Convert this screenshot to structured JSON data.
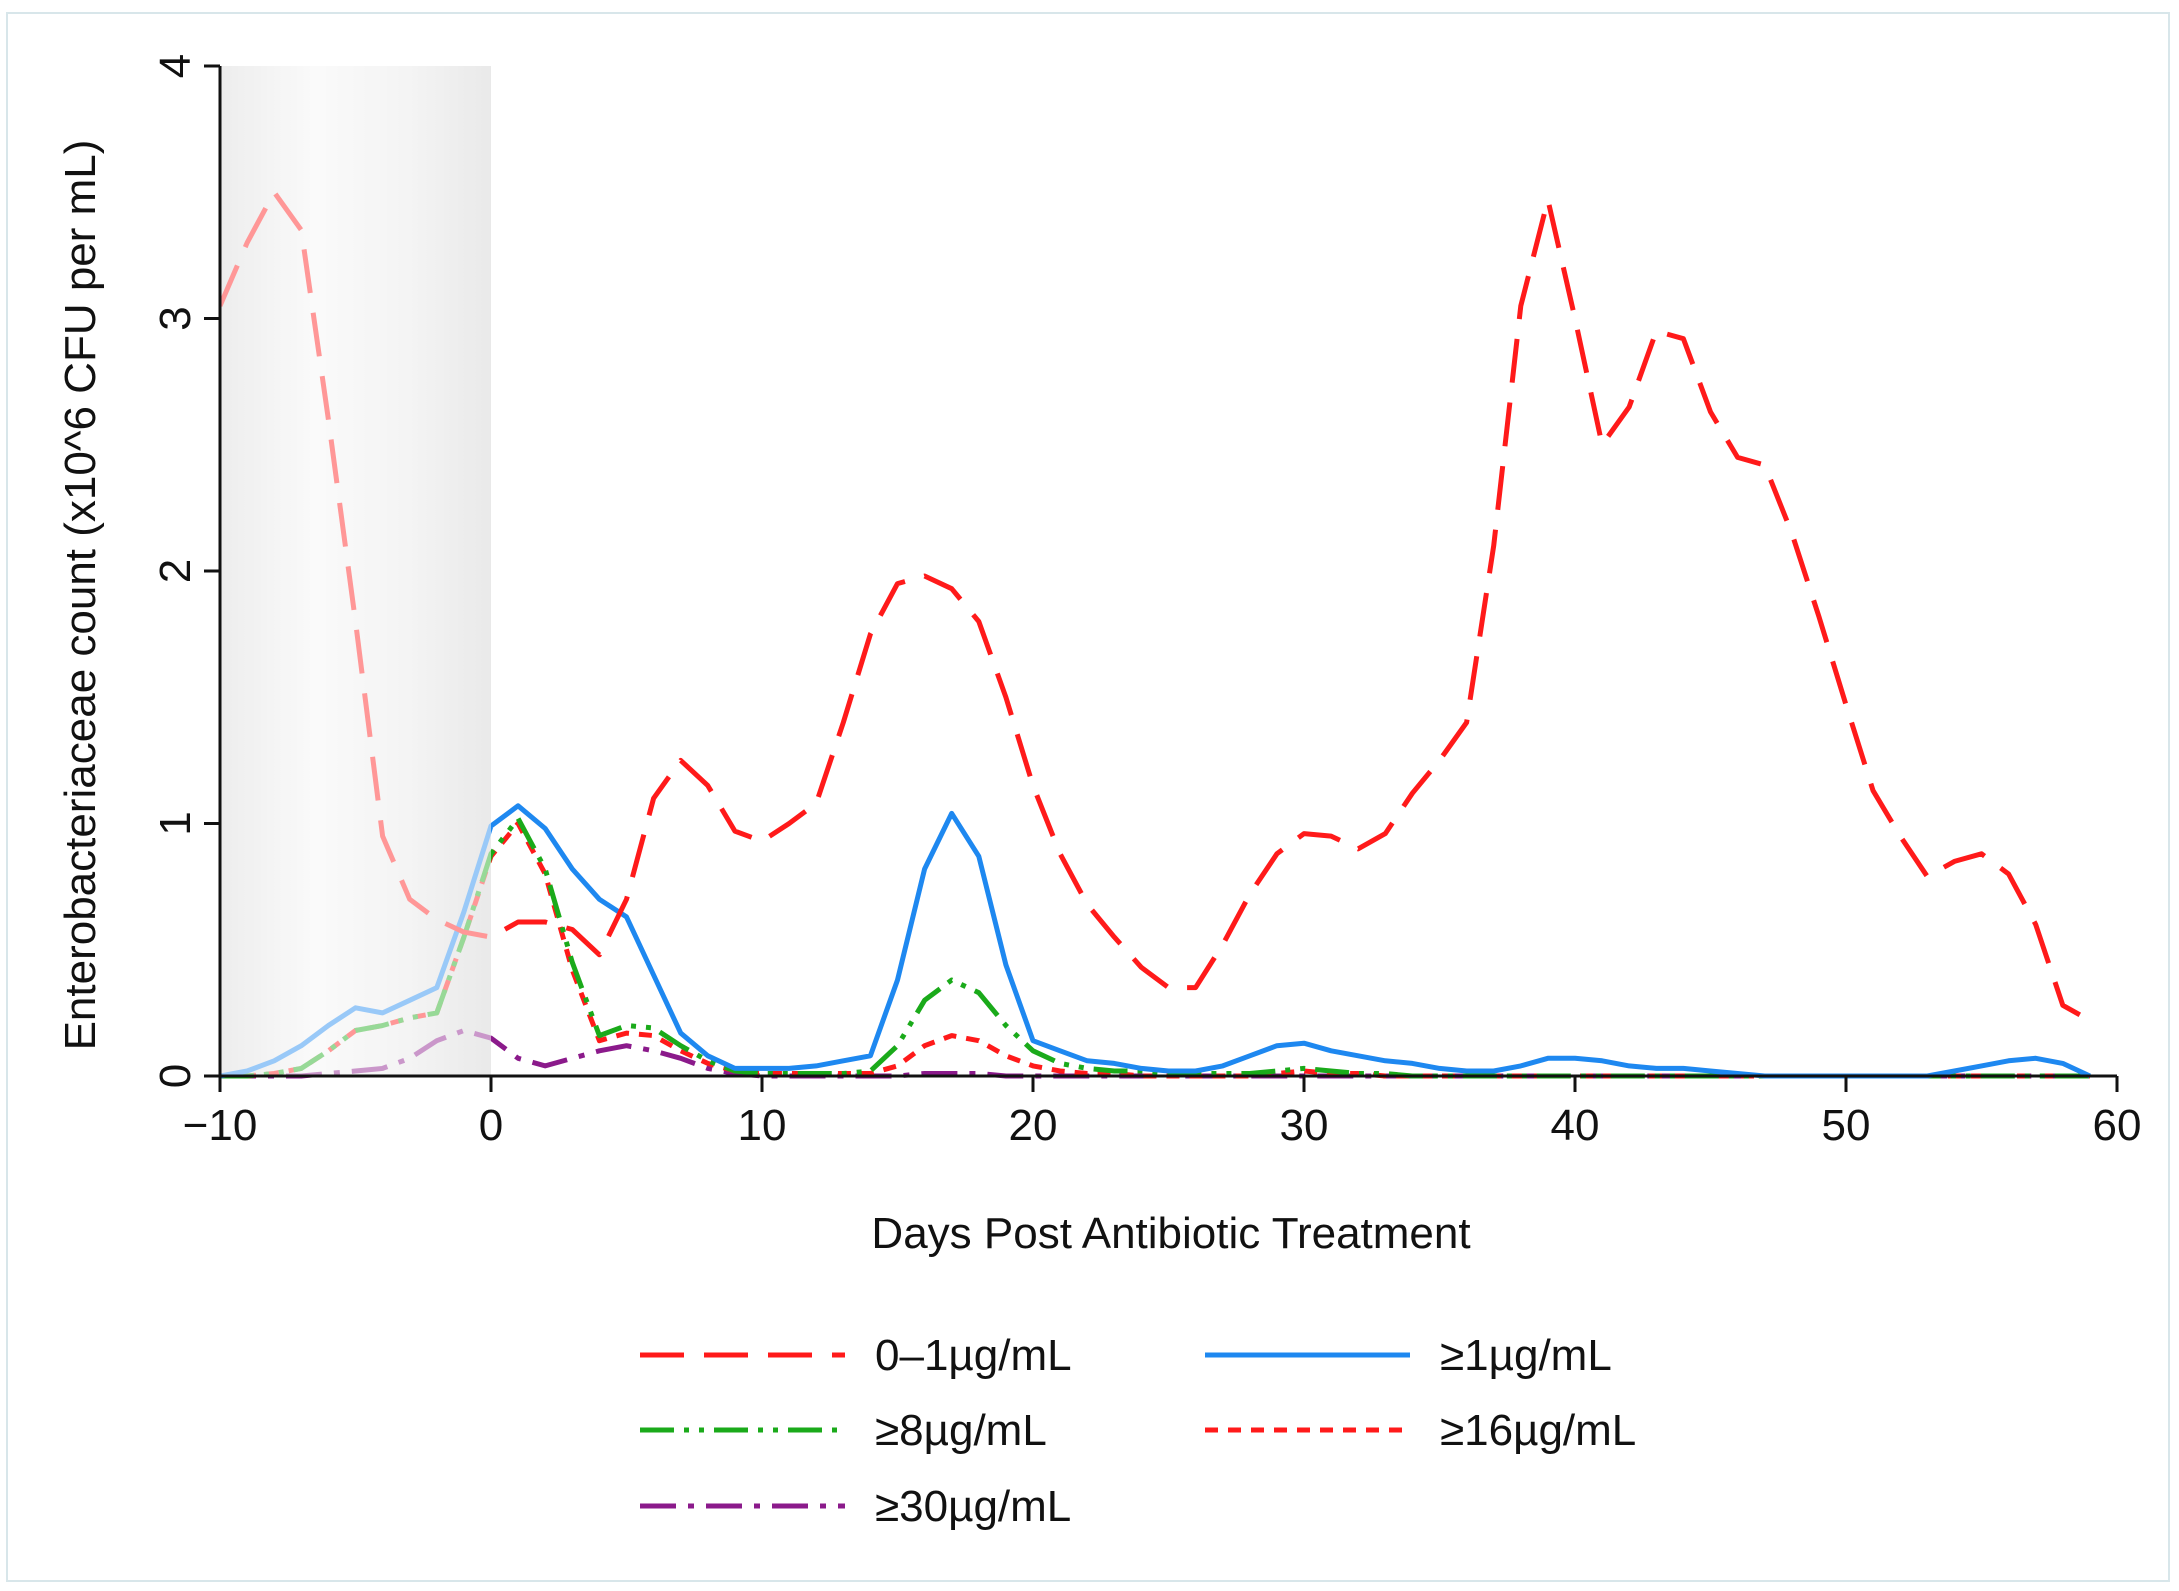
{
  "chart_data": {
    "type": "line",
    "title": "",
    "xlabel": "Days Post Antibiotic Treatment",
    "ylabel": "Enterobacteriaceae count (x10^6 CFU per mL)",
    "xlim": [
      -10,
      60
    ],
    "ylim": [
      0,
      4
    ],
    "xticks": [
      -10,
      0,
      10,
      20,
      30,
      40,
      50,
      60
    ],
    "yticks": [
      0,
      1,
      2,
      3,
      4
    ],
    "xtick_labels": [
      "−10",
      "0",
      "10",
      "20",
      "30",
      "40",
      "50",
      "60"
    ],
    "ytick_labels": [
      "0",
      "1",
      "2",
      "3",
      "4"
    ],
    "shaded_region": {
      "x_from": -10,
      "x_to": 0,
      "meaning": "pre-treatment period (faded)"
    },
    "legend_position": "bottom",
    "series": [
      {
        "name": "0–1µg/mL",
        "color": "#ff1a1a",
        "dash": "long-dash",
        "x": [
          -10,
          -9,
          -8,
          -7,
          -6,
          -5,
          -4,
          -3,
          -2,
          -1,
          0,
          1,
          2,
          3,
          4,
          5,
          6,
          7,
          8,
          9,
          10,
          11,
          12,
          13,
          14,
          15,
          16,
          17,
          18,
          19,
          20,
          21,
          22,
          23,
          24,
          25,
          26,
          27,
          28,
          29,
          30,
          31,
          32,
          33,
          34,
          35,
          36,
          37,
          38,
          39,
          40,
          41,
          42,
          43,
          44,
          45,
          46,
          47,
          48,
          49,
          50,
          51,
          52,
          53,
          54,
          55,
          56,
          57,
          58,
          59
        ],
        "y": [
          3.05,
          3.3,
          3.5,
          3.35,
          2.6,
          1.8,
          0.95,
          0.7,
          0.62,
          0.57,
          0.55,
          0.61,
          0.61,
          0.58,
          0.48,
          0.7,
          1.1,
          1.25,
          1.15,
          0.97,
          0.93,
          1.0,
          1.08,
          1.4,
          1.75,
          1.95,
          1.98,
          1.93,
          1.8,
          1.5,
          1.15,
          0.88,
          0.68,
          0.55,
          0.43,
          0.35,
          0.35,
          0.52,
          0.72,
          0.88,
          0.96,
          0.95,
          0.9,
          0.96,
          1.12,
          1.25,
          1.4,
          2.1,
          3.05,
          3.47,
          3.0,
          2.5,
          2.65,
          2.95,
          2.92,
          2.63,
          2.45,
          2.42,
          2.15,
          1.82,
          1.47,
          1.13,
          0.95,
          0.79,
          0.85,
          0.88,
          0.8,
          0.6,
          0.28,
          0.22
        ]
      },
      {
        "name": "≥1µg/mL",
        "color": "#1e88f0",
        "dash": "solid",
        "x": [
          -10,
          -9,
          -8,
          -7,
          -6,
          -5,
          -4,
          -3,
          -2,
          -1,
          0,
          1,
          2,
          3,
          4,
          5,
          6,
          7,
          8,
          9,
          10,
          11,
          12,
          13,
          14,
          15,
          16,
          17,
          18,
          19,
          20,
          21,
          22,
          23,
          24,
          25,
          26,
          27,
          28,
          29,
          30,
          31,
          32,
          33,
          34,
          35,
          36,
          37,
          38,
          39,
          40,
          41,
          42,
          43,
          44,
          45,
          46,
          47,
          48,
          49,
          50,
          51,
          52,
          53,
          54,
          55,
          56,
          57,
          58,
          59
        ],
        "y": [
          0.0,
          0.02,
          0.06,
          0.12,
          0.2,
          0.27,
          0.25,
          0.3,
          0.35,
          0.65,
          0.99,
          1.07,
          0.98,
          0.82,
          0.7,
          0.63,
          0.4,
          0.17,
          0.08,
          0.03,
          0.03,
          0.03,
          0.04,
          0.06,
          0.08,
          0.38,
          0.82,
          1.04,
          0.87,
          0.44,
          0.14,
          0.1,
          0.06,
          0.05,
          0.03,
          0.02,
          0.02,
          0.04,
          0.08,
          0.12,
          0.13,
          0.1,
          0.08,
          0.06,
          0.05,
          0.03,
          0.02,
          0.02,
          0.04,
          0.07,
          0.07,
          0.06,
          0.04,
          0.03,
          0.03,
          0.02,
          0.01,
          0.0,
          0.0,
          0.0,
          0.0,
          0.0,
          0.0,
          0.0,
          0.02,
          0.04,
          0.06,
          0.07,
          0.05,
          0.0
        ]
      },
      {
        "name": "≥8µg/mL",
        "color": "#1aaa1a",
        "dash": "long-dash-dot-dot",
        "x": [
          -10,
          -9,
          -8,
          -7,
          -6,
          -5,
          -4,
          -3,
          -2,
          -1,
          0,
          1,
          2,
          3,
          4,
          5,
          6,
          7,
          8,
          9,
          10,
          11,
          12,
          13,
          14,
          15,
          16,
          17,
          18,
          19,
          20,
          21,
          22,
          23,
          24,
          25,
          26,
          27,
          28,
          29,
          30,
          31,
          32,
          33,
          34,
          35,
          36,
          37,
          38,
          39,
          40,
          41,
          42,
          43,
          44,
          45,
          46,
          47,
          48,
          49,
          50,
          51,
          52,
          53,
          54,
          55,
          56,
          57,
          58,
          59
        ],
        "y": [
          0.0,
          0.0,
          0.01,
          0.03,
          0.1,
          0.18,
          0.2,
          0.23,
          0.25,
          0.55,
          0.88,
          1.02,
          0.82,
          0.45,
          0.16,
          0.2,
          0.19,
          0.12,
          0.06,
          0.02,
          0.01,
          0.01,
          0.01,
          0.01,
          0.02,
          0.12,
          0.3,
          0.38,
          0.33,
          0.2,
          0.1,
          0.05,
          0.03,
          0.02,
          0.02,
          0.01,
          0.01,
          0.01,
          0.01,
          0.02,
          0.03,
          0.02,
          0.01,
          0.01,
          0.0,
          0.0,
          0.0,
          0.0,
          0.0,
          0.0,
          0.0,
          0.0,
          0.0,
          0.0,
          0.0,
          0.0,
          0.0,
          0.0,
          0.0,
          0.0,
          0.0,
          0.0,
          0.0,
          0.0,
          0.0,
          0.0,
          0.0,
          0.0,
          0.0,
          0.0
        ]
      },
      {
        "name": "≥16µg/mL",
        "color": "#ff1a1a",
        "dash": "short-dash",
        "x": [
          -10,
          -9,
          -8,
          -7,
          -6,
          -5,
          -4,
          -3,
          -2,
          -1,
          0,
          1,
          2,
          3,
          4,
          5,
          6,
          7,
          8,
          9,
          10,
          11,
          12,
          13,
          14,
          15,
          16,
          17,
          18,
          19,
          20,
          21,
          22,
          23,
          24,
          25,
          26,
          27,
          28,
          29,
          30,
          31,
          32,
          33,
          34,
          35,
          36,
          37,
          38,
          39,
          40,
          41,
          42,
          43,
          44,
          45,
          46,
          47,
          48,
          49,
          50,
          51,
          52,
          53,
          54,
          55,
          56,
          57,
          58,
          59
        ],
        "y": [
          0.0,
          0.0,
          0.01,
          0.03,
          0.1,
          0.18,
          0.2,
          0.23,
          0.25,
          0.55,
          0.87,
          1.0,
          0.8,
          0.42,
          0.14,
          0.17,
          0.16,
          0.1,
          0.05,
          0.02,
          0.01,
          0.01,
          0.01,
          0.01,
          0.01,
          0.04,
          0.12,
          0.16,
          0.14,
          0.08,
          0.04,
          0.02,
          0.01,
          0.01,
          0.0,
          0.0,
          0.0,
          0.0,
          0.0,
          0.01,
          0.02,
          0.01,
          0.01,
          0.0,
          0.0,
          0.0,
          0.0,
          0.0,
          0.0,
          0.0,
          0.0,
          0.0,
          0.0,
          0.0,
          0.0,
          0.0,
          0.0,
          0.0,
          0.0,
          0.0,
          0.0,
          0.0,
          0.0,
          0.0,
          0.0,
          0.0,
          0.0,
          0.0,
          0.0,
          0.0
        ]
      },
      {
        "name": "≥30µg/mL",
        "color": "#8b1a8b",
        "dash": "long-dash-dot",
        "x": [
          -10,
          -9,
          -8,
          -7,
          -6,
          -5,
          -4,
          -3,
          -2,
          -1,
          0,
          1,
          2,
          3,
          4,
          5,
          6,
          7,
          8,
          9,
          10,
          11,
          12,
          13,
          14,
          15,
          16,
          17,
          18,
          19,
          20,
          21,
          22,
          23,
          24,
          25,
          26,
          27,
          28,
          29,
          30,
          31,
          32,
          33,
          34,
          35,
          36,
          37,
          38,
          39,
          40,
          41,
          42,
          43,
          44,
          45,
          46,
          47,
          48,
          49,
          50,
          51,
          52,
          53,
          54,
          55,
          56,
          57,
          58,
          59
        ],
        "y": [
          0.0,
          0.0,
          0.0,
          0.0,
          0.01,
          0.02,
          0.03,
          0.07,
          0.14,
          0.18,
          0.15,
          0.07,
          0.04,
          0.07,
          0.1,
          0.12,
          0.1,
          0.07,
          0.03,
          0.01,
          0.0,
          0.0,
          0.0,
          0.0,
          0.0,
          0.0,
          0.01,
          0.01,
          0.01,
          0.0,
          0.0,
          0.0,
          0.0,
          0.0,
          0.0,
          0.0,
          0.0,
          0.0,
          0.0,
          0.0,
          0.0,
          0.0,
          0.0,
          0.0,
          0.0,
          0.0,
          0.0,
          0.0,
          0.0,
          0.0,
          0.0,
          0.0,
          0.0,
          0.0,
          0.0,
          0.0,
          0.0,
          0.0,
          0.0,
          0.0,
          0.0,
          0.0,
          0.0,
          0.0,
          0.0,
          0.0,
          0.0,
          0.0,
          0.0,
          0.0
        ]
      }
    ]
  }
}
